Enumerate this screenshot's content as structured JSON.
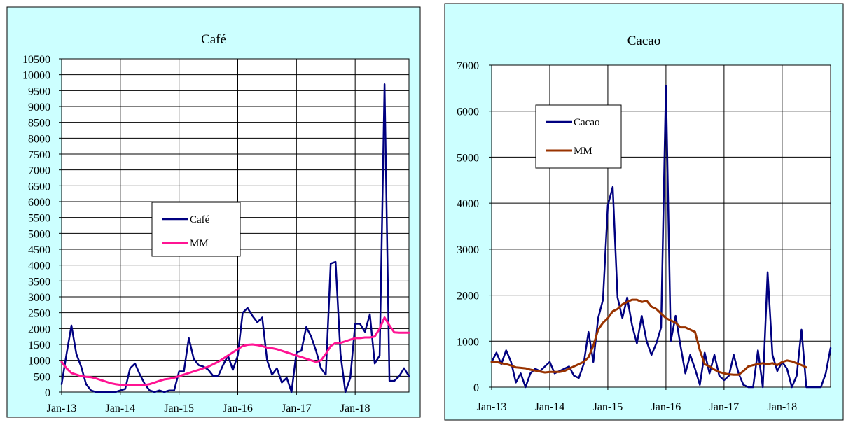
{
  "chart_data": [
    {
      "type": "line",
      "title": "Café",
      "xlabel": "",
      "ylabel": "",
      "ylim": [
        0,
        10500
      ],
      "ytick_step": 500,
      "x_tick_labels": [
        "Jan-13",
        "Jan-14",
        "Jan-15",
        "Jan-16",
        "Jan-17",
        "Jan-18"
      ],
      "grid": true,
      "legend_position": "center",
      "colors": {
        "background": "#ccffff",
        "plot_background": "#ffffff",
        "border": "#000000"
      },
      "series": [
        {
          "name": "Café",
          "color": "#000080",
          "start_month": "Jan-13",
          "values": [
            250,
            1200,
            2100,
            1200,
            800,
            250,
            50,
            0,
            0,
            0,
            0,
            0,
            50,
            100,
            750,
            900,
            550,
            250,
            50,
            0,
            50,
            0,
            50,
            50,
            650,
            650,
            1700,
            1050,
            850,
            800,
            700,
            500,
            500,
            850,
            1150,
            700,
            1150,
            2500,
            2650,
            2400,
            2200,
            2350,
            1000,
            550,
            750,
            300,
            450,
            0,
            1250,
            1300,
            2050,
            1750,
            1300,
            750,
            550,
            4050,
            4100,
            1200,
            0,
            450,
            2150,
            2150,
            1900,
            2450,
            900,
            1150,
            9700,
            350,
            350,
            500,
            750,
            500
          ]
        },
        {
          "name": "MM",
          "color": "#ff1493",
          "start_month": "Jan-13",
          "values": [
            950,
            750,
            600,
            550,
            500,
            480,
            470,
            430,
            380,
            330,
            280,
            250,
            230,
            220,
            220,
            220,
            220,
            220,
            250,
            300,
            350,
            400,
            420,
            450,
            500,
            550,
            600,
            650,
            700,
            750,
            800,
            880,
            950,
            1050,
            1150,
            1250,
            1350,
            1450,
            1490,
            1500,
            1480,
            1450,
            1400,
            1380,
            1350,
            1300,
            1250,
            1200,
            1150,
            1100,
            1050,
            1000,
            950,
            1000,
            1200,
            1450,
            1550,
            1550,
            1600,
            1650,
            1700,
            1700,
            1720,
            1720,
            1750,
            2000,
            2350,
            2100,
            1880,
            1870,
            1870,
            1870
          ]
        }
      ]
    },
    {
      "type": "line",
      "title": "Cacao",
      "xlabel": "",
      "ylabel": "",
      "ylim": [
        0,
        7000
      ],
      "ytick_step": 1000,
      "x_tick_labels": [
        "Jan-13",
        "Jan-14",
        "Jan-15",
        "Jan-16",
        "Jan-17",
        "Jan-18"
      ],
      "grid": true,
      "legend_position": "top-left",
      "colors": {
        "background": "#ccffff",
        "plot_background": "#ffffff",
        "border": "#000000"
      },
      "series": [
        {
          "name": "Cacao",
          "color": "#000080",
          "start_month": "Jan-13",
          "values": [
            550,
            750,
            500,
            800,
            550,
            100,
            300,
            0,
            300,
            400,
            350,
            450,
            550,
            300,
            350,
            400,
            450,
            250,
            200,
            500,
            1200,
            550,
            1500,
            1900,
            3950,
            4350,
            1950,
            1500,
            1950,
            1350,
            950,
            1550,
            1000,
            700,
            950,
            1300,
            6550,
            1000,
            1550,
            900,
            300,
            700,
            400,
            50,
            750,
            300,
            700,
            250,
            150,
            250,
            700,
            300,
            50,
            0,
            0,
            800,
            0,
            2500,
            700,
            350,
            550,
            400,
            0,
            250,
            1250,
            0,
            0,
            0,
            0,
            300,
            850
          ]
        },
        {
          "name": "MM",
          "color": "#993300",
          "start_month": "Jan-13",
          "values": [
            550,
            550,
            520,
            500,
            470,
            430,
            420,
            410,
            380,
            360,
            340,
            320,
            330,
            330,
            330,
            350,
            400,
            450,
            500,
            550,
            650,
            900,
            1250,
            1400,
            1500,
            1650,
            1700,
            1800,
            1850,
            1900,
            1900,
            1850,
            1880,
            1750,
            1700,
            1600,
            1500,
            1450,
            1400,
            1300,
            1300,
            1250,
            1200,
            800,
            500,
            450,
            380,
            330,
            300,
            280,
            270,
            270,
            350,
            450,
            480,
            500,
            520,
            500,
            520,
            480,
            550,
            580,
            560,
            520,
            480,
            430
          ]
        }
      ]
    }
  ]
}
